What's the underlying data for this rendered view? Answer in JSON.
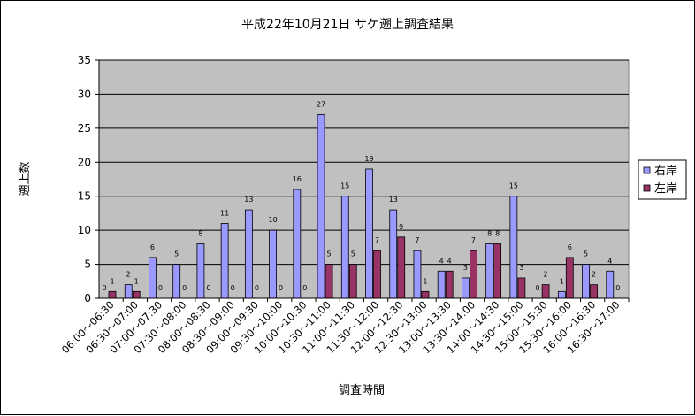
{
  "chart_data": {
    "type": "bar",
    "title": "平成22年10月21日 サケ遡上調査結果",
    "xlabel": "調査時間",
    "ylabel": "遡上数",
    "ylim": [
      0,
      35
    ],
    "yticks": [
      0,
      5,
      10,
      15,
      20,
      25,
      30,
      35
    ],
    "grid": true,
    "legend_position": "right",
    "categories": [
      "06:00～06:30",
      "06:30～07:00",
      "07:00～07:30",
      "07:30～08:00",
      "08:00～08:30",
      "08:30～09:00",
      "09:00～09:30",
      "09:30～10:00",
      "10:00～10:30",
      "10:30～11:00",
      "11:00～11:30",
      "11:30～12:00",
      "12:00～12:30",
      "12:30～13:00",
      "13:00～13:30",
      "13:30～14:00",
      "14:00～14:30",
      "14:30～15:00",
      "15:00～15:30",
      "15:30～16:00",
      "16:00～16:30",
      "16:30～17:00"
    ],
    "series": [
      {
        "name": "右岸",
        "color": "#9999ff",
        "values": [
          0,
          2,
          6,
          5,
          8,
          11,
          13,
          10,
          16,
          27,
          15,
          19,
          13,
          7,
          4,
          3,
          8,
          15,
          0,
          1,
          5,
          4
        ]
      },
      {
        "name": "左岸",
        "color": "#993366",
        "values": [
          1,
          1,
          0,
          0,
          0,
          0,
          0,
          0,
          0,
          5,
          5,
          7,
          9,
          1,
          4,
          7,
          8,
          3,
          2,
          6,
          2,
          0
        ]
      }
    ],
    "plot_background": "#c0c0c0"
  }
}
